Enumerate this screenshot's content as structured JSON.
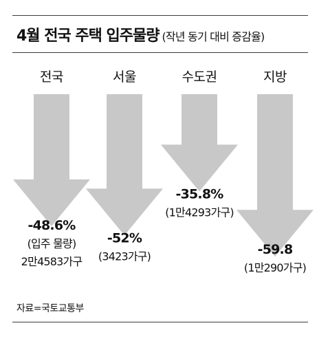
{
  "title": "4월 전국 주택 입주물량",
  "subtitle": "(작년 동기 대비 증감율)",
  "source": "자료=국토교통부",
  "colors": {
    "arrow": "#c8c8c8",
    "text": "#111111",
    "rule": "#3a3a3a"
  },
  "chart_data": {
    "type": "bar",
    "orientation": "downward-arrows",
    "categories": [
      "전국",
      "서울",
      "수도권",
      "지방"
    ],
    "values": [
      -48.6,
      -52,
      -35.8,
      -59.8
    ],
    "value_labels": [
      "-48.6%",
      "-52%",
      "-35.8%",
      "-59.8"
    ],
    "notes": [
      [
        "(입주 물량)",
        "2만4583가구"
      ],
      [
        "(3423가구)"
      ],
      [
        "(1만4293가구)"
      ],
      [
        "(1만290가구)"
      ]
    ],
    "xlabel": "",
    "ylabel": ""
  }
}
